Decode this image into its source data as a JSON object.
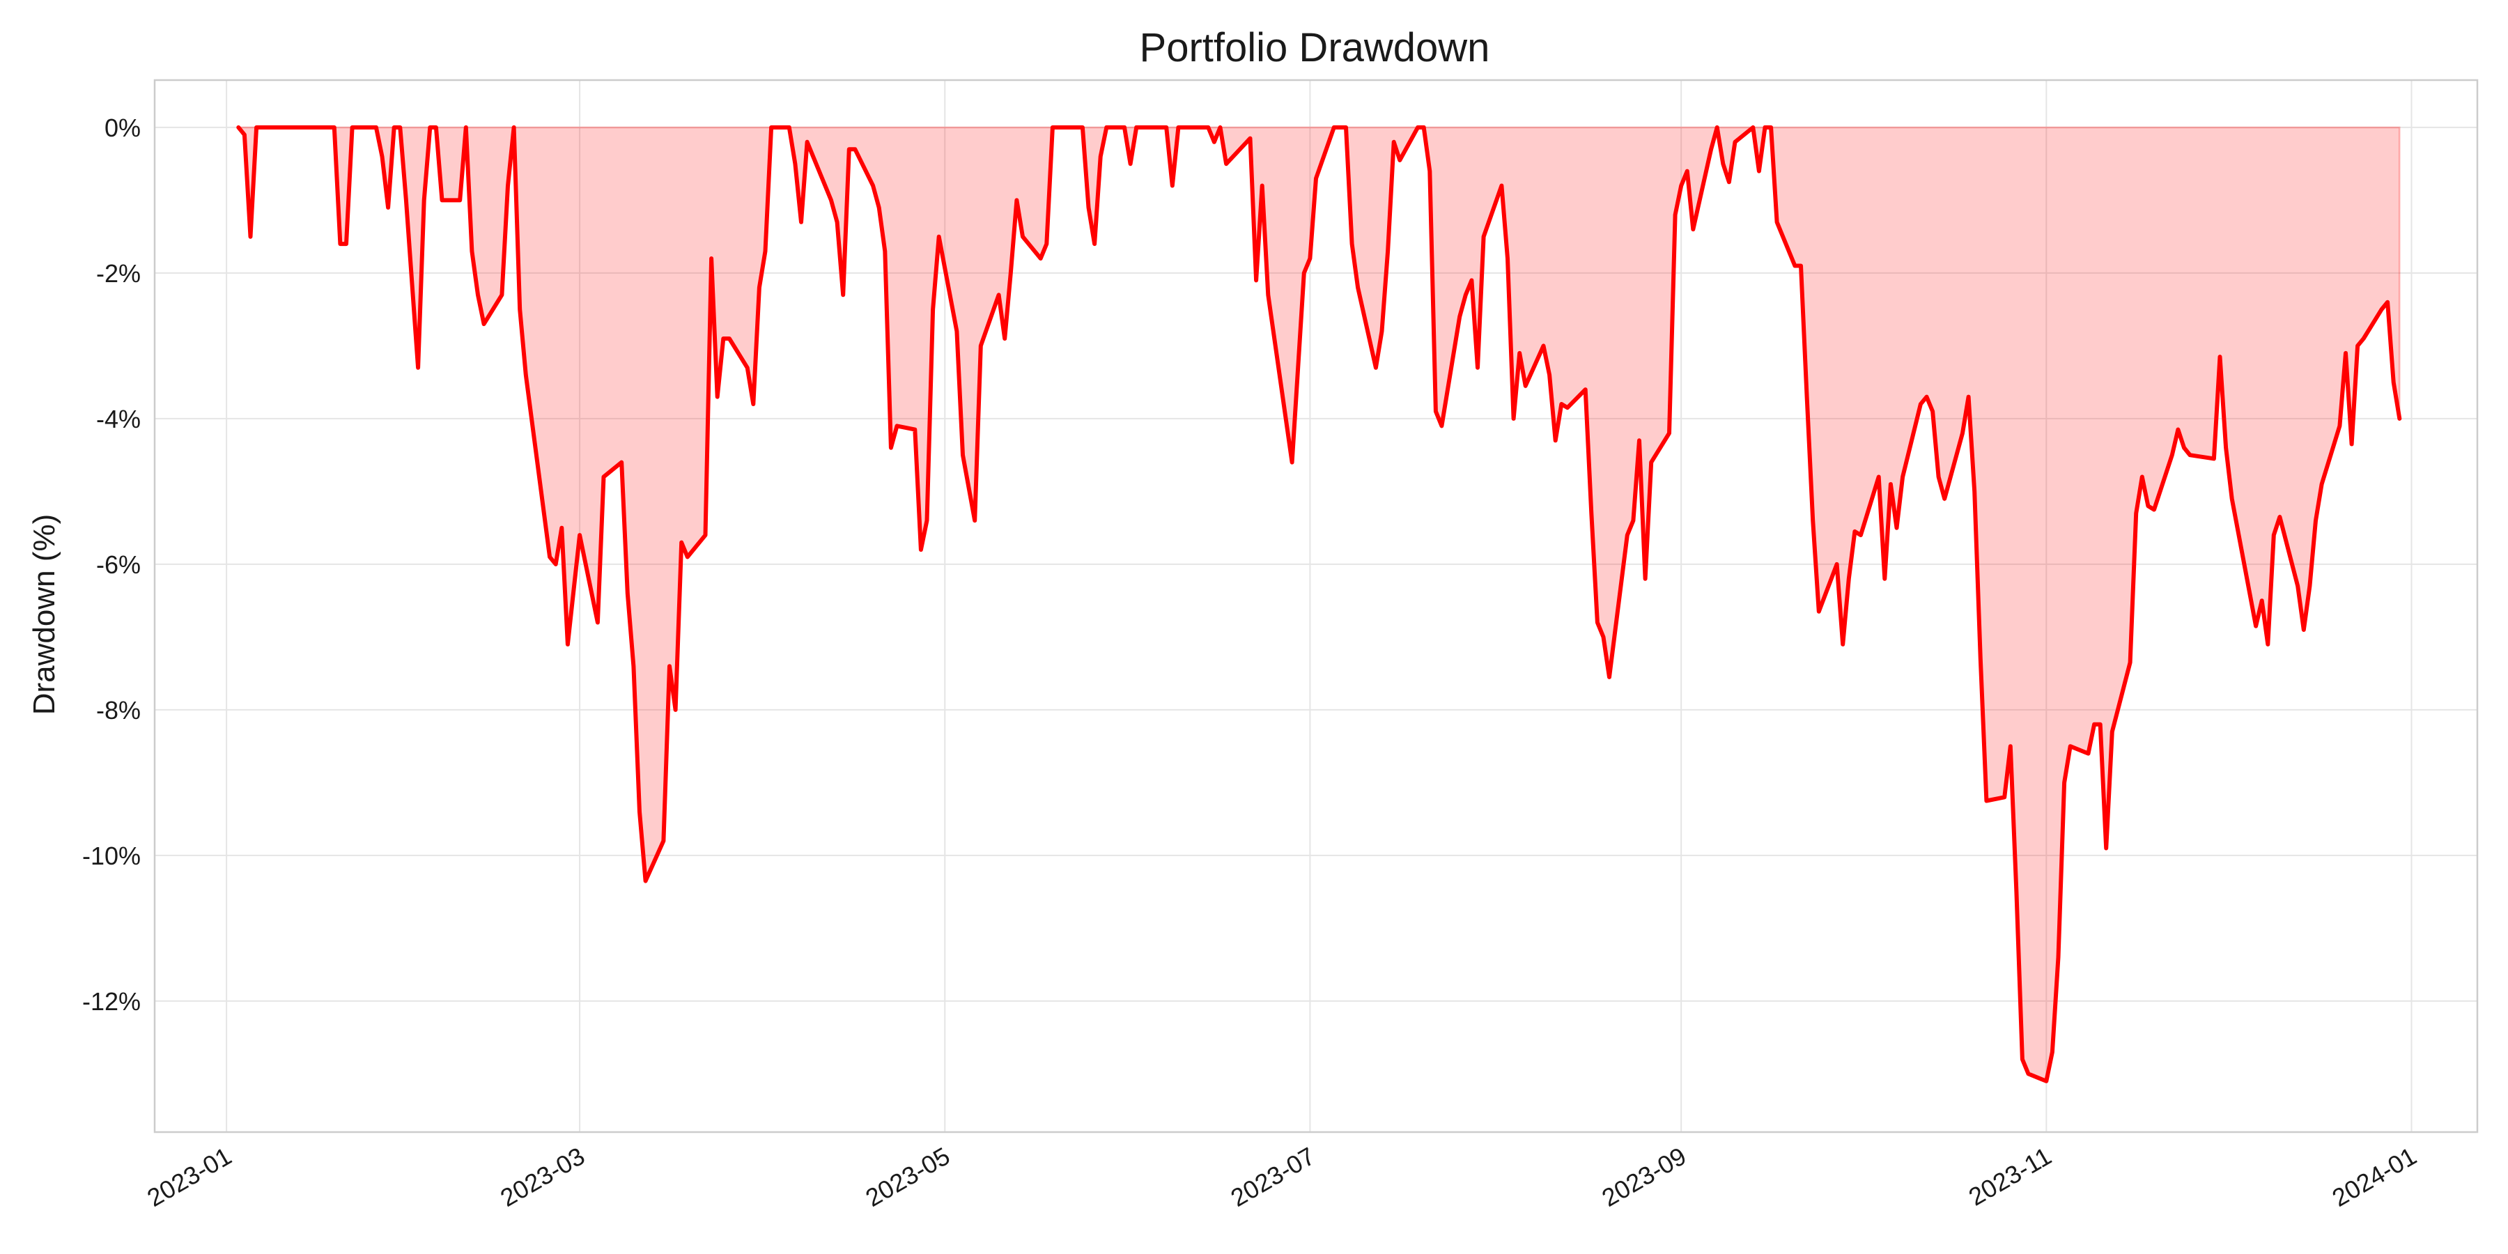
{
  "chart_data": {
    "type": "area",
    "title": "Portfolio Drawdown",
    "xlabel": "",
    "ylabel": "Drawdown (%)",
    "x_range": [
      "2022-12-20",
      "2024-01-12"
    ],
    "ylim": [
      -13.8,
      0.65
    ],
    "grid": true,
    "legend": "none",
    "colors": {
      "line": "#ff0000",
      "fill": "#ff0000",
      "fill_opacity": 0.2,
      "grid": "#e5e5e5",
      "frame": "#cccccc"
    },
    "x_ticks": [
      "2023-01",
      "2023-03",
      "2023-05",
      "2023-07",
      "2023-09",
      "2023-11",
      "2024-01"
    ],
    "y_ticks": [
      0,
      -2,
      -4,
      -6,
      -8,
      -10,
      -12
    ],
    "y_tick_labels": [
      "0%",
      "-2%",
      "-4%",
      "-6%",
      "-8%",
      "-10%",
      "-12%"
    ],
    "series": [
      {
        "points": [
          [
            "2023-01-03",
            0.0
          ],
          [
            "2023-01-04",
            -0.1
          ],
          [
            "2023-01-05",
            -1.5
          ],
          [
            "2023-01-06",
            0.0
          ],
          [
            "2023-01-19",
            0.0
          ],
          [
            "2023-01-20",
            -1.6
          ],
          [
            "2023-01-21",
            -1.6
          ],
          [
            "2023-01-22",
            0.0
          ],
          [
            "2023-01-26",
            0.0
          ],
          [
            "2023-01-27",
            -0.4
          ],
          [
            "2023-01-28",
            -1.1
          ],
          [
            "2023-01-29",
            0.0
          ],
          [
            "2023-01-30",
            0.0
          ],
          [
            "2023-01-31",
            -1.0
          ],
          [
            "2023-02-02",
            -3.3
          ],
          [
            "2023-02-03",
            -1.0
          ],
          [
            "2023-02-04",
            0.0
          ],
          [
            "2023-02-05",
            0.0
          ],
          [
            "2023-02-06",
            -1.0
          ],
          [
            "2023-02-09",
            -1.0
          ],
          [
            "2023-02-10",
            0.0
          ],
          [
            "2023-02-11",
            -1.7
          ],
          [
            "2023-02-12",
            -2.3
          ],
          [
            "2023-02-13",
            -2.7
          ],
          [
            "2023-02-16",
            -2.3
          ],
          [
            "2023-02-17",
            -0.8
          ],
          [
            "2023-02-18",
            0.0
          ],
          [
            "2023-02-19",
            -2.5
          ],
          [
            "2023-02-20",
            -3.4
          ],
          [
            "2023-02-24",
            -5.9
          ],
          [
            "2023-02-25",
            -6.0
          ],
          [
            "2023-02-26",
            -5.5
          ],
          [
            "2023-02-27",
            -7.1
          ],
          [
            "2023-03-01",
            -5.6
          ],
          [
            "2023-03-04",
            -6.8
          ],
          [
            "2023-03-05",
            -4.8
          ],
          [
            "2023-03-08",
            -4.6
          ],
          [
            "2023-03-09",
            -6.4
          ],
          [
            "2023-03-10",
            -7.4
          ],
          [
            "2023-03-11",
            -9.4
          ],
          [
            "2023-03-12",
            -10.35
          ],
          [
            "2023-03-15",
            -9.8
          ],
          [
            "2023-03-16",
            -7.4
          ],
          [
            "2023-03-17",
            -8.0
          ],
          [
            "2023-03-18",
            -5.7
          ],
          [
            "2023-03-19",
            -5.9
          ],
          [
            "2023-03-22",
            -5.6
          ],
          [
            "2023-03-23",
            -1.8
          ],
          [
            "2023-03-24",
            -3.7
          ],
          [
            "2023-03-25",
            -2.9
          ],
          [
            "2023-03-26",
            -2.9
          ],
          [
            "2023-03-29",
            -3.3
          ],
          [
            "2023-03-30",
            -3.8
          ],
          [
            "2023-03-31",
            -2.2
          ],
          [
            "2023-04-01",
            -1.7
          ],
          [
            "2023-04-02",
            0.0
          ],
          [
            "2023-04-05",
            0.0
          ],
          [
            "2023-04-06",
            -0.5
          ],
          [
            "2023-04-07",
            -1.3
          ],
          [
            "2023-04-08",
            -0.2
          ],
          [
            "2023-04-12",
            -1.0
          ],
          [
            "2023-04-13",
            -1.3
          ],
          [
            "2023-04-14",
            -2.3
          ],
          [
            "2023-04-15",
            -0.3
          ],
          [
            "2023-04-16",
            -0.3
          ],
          [
            "2023-04-19",
            -0.8
          ],
          [
            "2023-04-20",
            -1.1
          ],
          [
            "2023-04-21",
            -1.7
          ],
          [
            "2023-04-22",
            -4.4
          ],
          [
            "2023-04-23",
            -4.1
          ],
          [
            "2023-04-26",
            -4.15
          ],
          [
            "2023-04-27",
            -5.8
          ],
          [
            "2023-04-28",
            -5.4
          ],
          [
            "2023-04-29",
            -2.5
          ],
          [
            "2023-04-30",
            -1.5
          ],
          [
            "2023-05-03",
            -2.8
          ],
          [
            "2023-05-04",
            -4.5
          ],
          [
            "2023-05-06",
            -5.4
          ],
          [
            "2023-05-07",
            -3.0
          ],
          [
            "2023-05-10",
            -2.3
          ],
          [
            "2023-05-11",
            -2.9
          ],
          [
            "2023-05-12",
            -2.0
          ],
          [
            "2023-05-13",
            -1.0
          ],
          [
            "2023-05-14",
            -1.5
          ],
          [
            "2023-05-17",
            -1.8
          ],
          [
            "2023-05-18",
            -1.6
          ],
          [
            "2023-05-19",
            0.0
          ],
          [
            "2023-05-24",
            0.0
          ],
          [
            "2023-05-25",
            -1.1
          ],
          [
            "2023-05-26",
            -1.6
          ],
          [
            "2023-05-27",
            -0.4
          ],
          [
            "2023-05-28",
            0.0
          ],
          [
            "2023-05-31",
            0.0
          ],
          [
            "2023-06-01",
            -0.5
          ],
          [
            "2023-06-02",
            0.0
          ],
          [
            "2023-06-07",
            0.0
          ],
          [
            "2023-06-08",
            -0.8
          ],
          [
            "2023-06-09",
            0.0
          ],
          [
            "2023-06-14",
            0.0
          ],
          [
            "2023-06-15",
            -0.2
          ],
          [
            "2023-06-16",
            0.0
          ],
          [
            "2023-06-17",
            -0.5
          ],
          [
            "2023-06-21",
            -0.15
          ],
          [
            "2023-06-22",
            -2.1
          ],
          [
            "2023-06-23",
            -0.8
          ],
          [
            "2023-06-24",
            -2.3
          ],
          [
            "2023-06-28",
            -4.6
          ],
          [
            "2023-06-29",
            -3.3
          ],
          [
            "2023-06-30",
            -2.0
          ],
          [
            "2023-07-01",
            -1.8
          ],
          [
            "2023-07-02",
            -0.7
          ],
          [
            "2023-07-05",
            0.0
          ],
          [
            "2023-07-07",
            0.0
          ],
          [
            "2023-07-08",
            -1.6
          ],
          [
            "2023-07-09",
            -2.2
          ],
          [
            "2023-07-12",
            -3.3
          ],
          [
            "2023-07-13",
            -2.8
          ],
          [
            "2023-07-14",
            -1.7
          ],
          [
            "2023-07-15",
            -0.2
          ],
          [
            "2023-07-16",
            -0.45
          ],
          [
            "2023-07-19",
            0.0
          ],
          [
            "2023-07-20",
            0.0
          ],
          [
            "2023-07-21",
            -0.6
          ],
          [
            "2023-07-22",
            -3.9
          ],
          [
            "2023-07-23",
            -4.1
          ],
          [
            "2023-07-26",
            -2.6
          ],
          [
            "2023-07-27",
            -2.3
          ],
          [
            "2023-07-28",
            -2.1
          ],
          [
            "2023-07-29",
            -3.3
          ],
          [
            "2023-07-30",
            -1.5
          ],
          [
            "2023-08-02",
            -0.8
          ],
          [
            "2023-08-03",
            -1.8
          ],
          [
            "2023-08-04",
            -4.0
          ],
          [
            "2023-08-05",
            -3.1
          ],
          [
            "2023-08-06",
            -3.55
          ],
          [
            "2023-08-09",
            -3.0
          ],
          [
            "2023-08-10",
            -3.4
          ],
          [
            "2023-08-11",
            -4.3
          ],
          [
            "2023-08-12",
            -3.8
          ],
          [
            "2023-08-13",
            -3.85
          ],
          [
            "2023-08-16",
            -3.6
          ],
          [
            "2023-08-17",
            -5.3
          ],
          [
            "2023-08-18",
            -6.8
          ],
          [
            "2023-08-19",
            -7.0
          ],
          [
            "2023-08-20",
            -7.55
          ],
          [
            "2023-08-23",
            -5.6
          ],
          [
            "2023-08-24",
            -5.4
          ],
          [
            "2023-08-25",
            -4.3
          ],
          [
            "2023-08-26",
            -6.2
          ],
          [
            "2023-08-27",
            -4.6
          ],
          [
            "2023-08-30",
            -4.2
          ],
          [
            "2023-08-31",
            -1.2
          ],
          [
            "2023-09-01",
            -0.8
          ],
          [
            "2023-09-02",
            -0.6
          ],
          [
            "2023-09-03",
            -1.4
          ],
          [
            "2023-09-06",
            -0.3
          ],
          [
            "2023-09-07",
            0.0
          ],
          [
            "2023-09-08",
            -0.5
          ],
          [
            "2023-09-09",
            -0.75
          ],
          [
            "2023-09-10",
            -0.2
          ],
          [
            "2023-09-13",
            0.0
          ],
          [
            "2023-09-14",
            -0.6
          ],
          [
            "2023-09-15",
            0.0
          ],
          [
            "2023-09-16",
            0.0
          ],
          [
            "2023-09-17",
            -1.3
          ],
          [
            "2023-09-20",
            -1.9
          ],
          [
            "2023-09-21",
            -1.9
          ],
          [
            "2023-09-22",
            -3.7
          ],
          [
            "2023-09-23",
            -5.4
          ],
          [
            "2023-09-24",
            -6.65
          ],
          [
            "2023-09-27",
            -6.0
          ],
          [
            "2023-09-28",
            -7.1
          ],
          [
            "2023-09-29",
            -6.2
          ],
          [
            "2023-09-30",
            -5.55
          ],
          [
            "2023-10-01",
            -5.6
          ],
          [
            "2023-10-04",
            -4.8
          ],
          [
            "2023-10-05",
            -6.2
          ],
          [
            "2023-10-06",
            -4.9
          ],
          [
            "2023-10-07",
            -5.5
          ],
          [
            "2023-10-08",
            -4.8
          ],
          [
            "2023-10-11",
            -3.8
          ],
          [
            "2023-10-12",
            -3.7
          ],
          [
            "2023-10-13",
            -3.9
          ],
          [
            "2023-10-14",
            -4.8
          ],
          [
            "2023-10-15",
            -5.1
          ],
          [
            "2023-10-18",
            -4.2
          ],
          [
            "2023-10-19",
            -3.7
          ],
          [
            "2023-10-20",
            -5.0
          ],
          [
            "2023-10-21",
            -7.3
          ],
          [
            "2023-10-22",
            -9.25
          ],
          [
            "2023-10-25",
            -9.2
          ],
          [
            "2023-10-26",
            -8.5
          ],
          [
            "2023-10-27",
            -10.5
          ],
          [
            "2023-10-28",
            -12.8
          ],
          [
            "2023-10-29",
            -13.0
          ],
          [
            "2023-11-01",
            -13.1
          ],
          [
            "2023-11-02",
            -12.7
          ],
          [
            "2023-11-03",
            -11.4
          ],
          [
            "2023-11-04",
            -9.0
          ],
          [
            "2023-11-05",
            -8.5
          ],
          [
            "2023-11-08",
            -8.6
          ],
          [
            "2023-11-09",
            -8.2
          ],
          [
            "2023-11-10",
            -8.2
          ],
          [
            "2023-11-11",
            -9.9
          ],
          [
            "2023-11-12",
            -8.3
          ],
          [
            "2023-11-15",
            -7.35
          ],
          [
            "2023-11-16",
            -5.3
          ],
          [
            "2023-11-17",
            -4.8
          ],
          [
            "2023-11-18",
            -5.2
          ],
          [
            "2023-11-19",
            -5.25
          ],
          [
            "2023-11-22",
            -4.5
          ],
          [
            "2023-11-23",
            -4.15
          ],
          [
            "2023-11-24",
            -4.4
          ],
          [
            "2023-11-25",
            -4.5
          ],
          [
            "2023-11-29",
            -4.55
          ],
          [
            "2023-11-30",
            -3.15
          ],
          [
            "2023-12-01",
            -4.4
          ],
          [
            "2023-12-02",
            -5.1
          ],
          [
            "2023-12-06",
            -6.85
          ],
          [
            "2023-12-07",
            -6.5
          ],
          [
            "2023-12-08",
            -7.1
          ],
          [
            "2023-12-09",
            -5.6
          ],
          [
            "2023-12-10",
            -5.35
          ],
          [
            "2023-12-13",
            -6.3
          ],
          [
            "2023-12-14",
            -6.9
          ],
          [
            "2023-12-15",
            -6.3
          ],
          [
            "2023-12-16",
            -5.4
          ],
          [
            "2023-12-17",
            -4.9
          ],
          [
            "2023-12-20",
            -4.1
          ],
          [
            "2023-12-21",
            -3.1
          ],
          [
            "2023-12-22",
            -4.35
          ],
          [
            "2023-12-23",
            -3.0
          ],
          [
            "2023-12-24",
            -2.9
          ],
          [
            "2023-12-27",
            -2.5
          ],
          [
            "2023-12-28",
            -2.4
          ],
          [
            "2023-12-29",
            -3.5
          ],
          [
            "2023-12-30",
            -4.0
          ]
        ]
      }
    ]
  }
}
